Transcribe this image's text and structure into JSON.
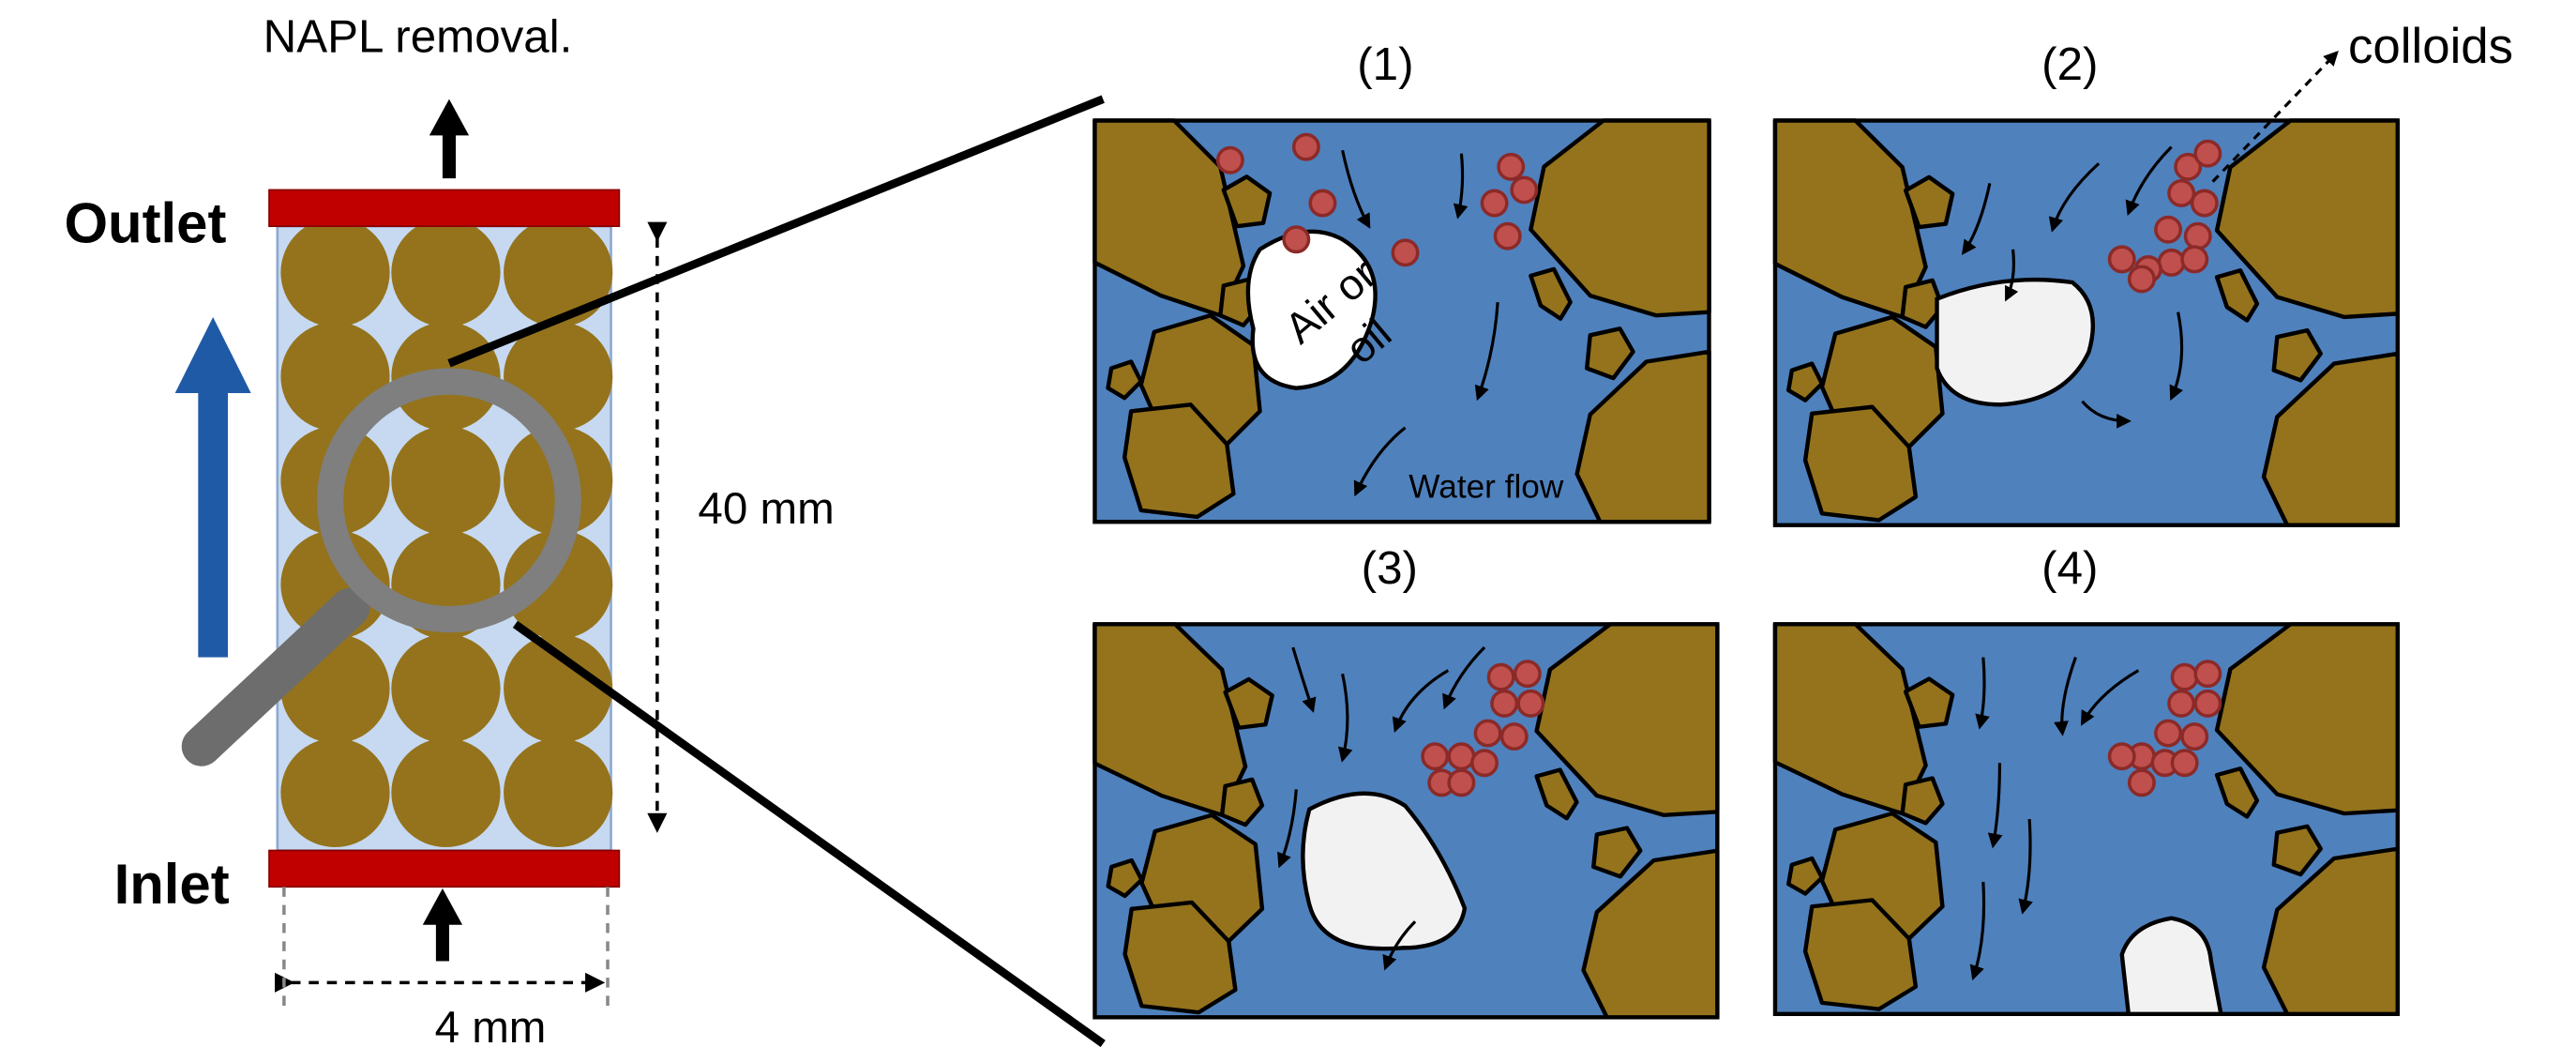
{
  "labels": {
    "napl": "NAPL removal.",
    "outlet": "Outlet",
    "inlet": "Inlet",
    "length": "40 mm",
    "width": "4 mm",
    "colloids": "colloids",
    "air_oil_1": "Air or",
    "air_oil_2": "oil",
    "water_flow": "Water flow"
  },
  "panels": [
    {
      "label": "(1)"
    },
    {
      "label": "(2)"
    },
    {
      "label": "(3)"
    },
    {
      "label": "(4)"
    }
  ]
}
